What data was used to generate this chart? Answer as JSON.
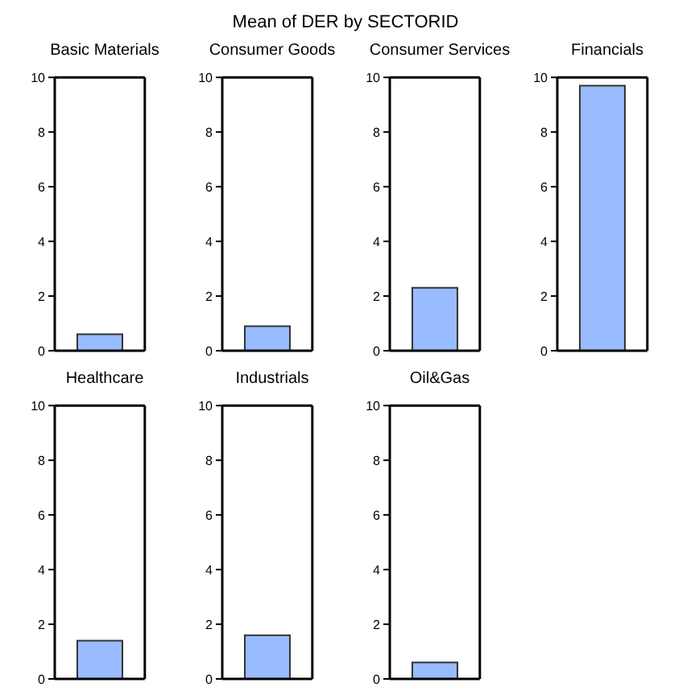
{
  "chart_data": [
    {
      "type": "other",
      "title": "Mean of DER by SECTORID"
    },
    {
      "type": "bar",
      "title": "Basic Materials",
      "categories": [
        null
      ],
      "values": [
        0.6
      ],
      "color": "#99bbff",
      "ylim": [
        0,
        10
      ],
      "yticks": [
        0,
        2,
        4,
        6,
        8,
        10
      ],
      "grid": false,
      "tick_labels": "y"
    },
    {
      "type": "bar",
      "title": "Consumer Goods",
      "categories": [
        null
      ],
      "values": [
        0.9
      ],
      "color": "#99bbff",
      "ylim": [
        0,
        10
      ],
      "yticks": [
        0,
        2,
        4,
        6,
        8,
        10
      ],
      "grid": false,
      "tick_labels": "y"
    },
    {
      "type": "bar",
      "title": "Consumer Services",
      "categories": [
        null
      ],
      "values": [
        2.3
      ],
      "color": "#99bbff",
      "ylim": [
        0,
        10
      ],
      "yticks": [
        0,
        2,
        4,
        6,
        8,
        10
      ],
      "grid": false,
      "tick_labels": "y"
    },
    {
      "type": "bar",
      "title": "Financials",
      "categories": [
        null
      ],
      "values": [
        9.7
      ],
      "color": "#99bbff",
      "ylim": [
        0,
        10
      ],
      "yticks": [
        0,
        2,
        4,
        6,
        8,
        10
      ],
      "grid": false,
      "tick_labels": "y"
    },
    {
      "type": "bar",
      "title": "Healthcare",
      "categories": [
        null
      ],
      "values": [
        1.4
      ],
      "color": "#99bbff",
      "ylim": [
        0,
        10
      ],
      "yticks": [
        0,
        2,
        4,
        6,
        8,
        10
      ],
      "grid": false,
      "tick_labels": "y"
    },
    {
      "type": "bar",
      "title": "Industrials",
      "categories": [
        null
      ],
      "values": [
        1.6
      ],
      "color": "#99bbff",
      "ylim": [
        0,
        10
      ],
      "yticks": [
        0,
        2,
        4,
        6,
        8,
        10
      ],
      "grid": false,
      "tick_labels": "y"
    },
    {
      "type": "bar",
      "title": "Oil&Gas",
      "categories": [
        null
      ],
      "values": [
        0.6
      ],
      "color": "#99bbff",
      "ylim": [
        0,
        10
      ],
      "yticks": [
        0,
        2,
        4,
        6,
        8,
        10
      ],
      "grid": false,
      "tick_labels": "y"
    }
  ]
}
